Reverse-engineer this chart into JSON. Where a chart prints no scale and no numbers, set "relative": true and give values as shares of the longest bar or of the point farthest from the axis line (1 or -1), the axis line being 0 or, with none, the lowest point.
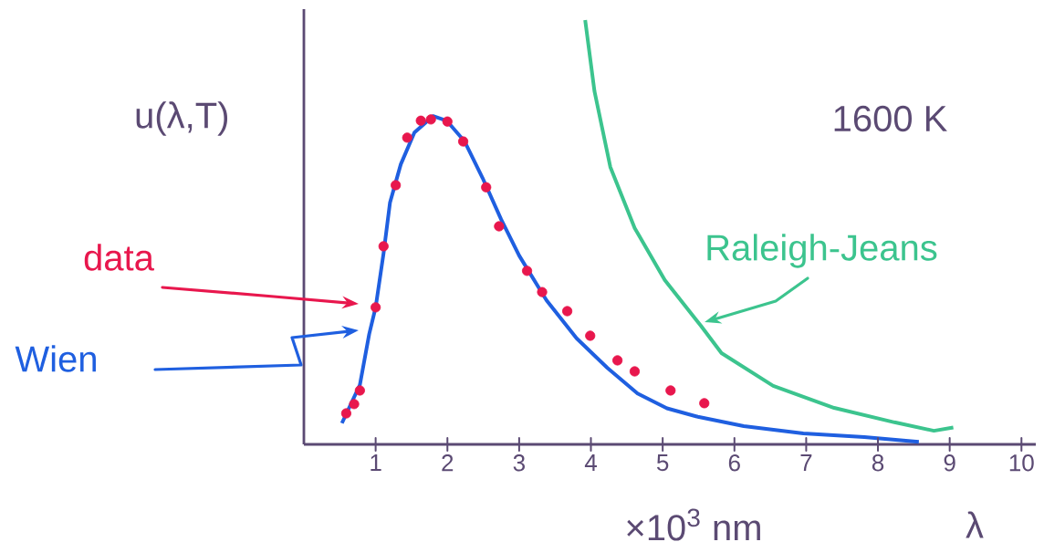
{
  "chart_data": {
    "type": "line",
    "relative": true,
    "ylabel": "u(λ,T)",
    "xlabel": "×10$^{3}$ nm",
    "annotations": [
      "1600 K",
      "λ"
    ],
    "xlim": [
      0,
      10.2
    ],
    "xticks": [
      1,
      2,
      3,
      4,
      5,
      6,
      7,
      8,
      9,
      10
    ],
    "series": [
      {
        "name": "data",
        "type": "scatter",
        "marker": "circle",
        "color": "#e8174d",
        "x": [
          0.59,
          0.7,
          0.78,
          1.0,
          1.11,
          1.28,
          1.44,
          1.63,
          1.77,
          2.0,
          2.22,
          2.54,
          2.72,
          3.11,
          3.32,
          3.67,
          3.99,
          4.37,
          4.61,
          5.11,
          5.58
        ],
        "values": [
          0.073,
          0.095,
          0.127,
          0.323,
          0.467,
          0.611,
          0.723,
          0.763,
          0.766,
          0.761,
          0.714,
          0.606,
          0.514,
          0.409,
          0.359,
          0.314,
          0.256,
          0.198,
          0.172,
          0.127,
          0.097
        ]
      },
      {
        "name": "Wien",
        "marker": "none",
        "color": "#1f5fe0",
        "x": [
          0.53,
          0.78,
          0.91,
          1.0,
          1.11,
          1.2,
          1.35,
          1.54,
          1.8,
          1.99,
          2.24,
          2.49,
          2.75,
          3.0,
          3.38,
          3.8,
          4.23,
          4.65,
          5.06,
          5.49,
          6.13,
          6.96,
          7.81,
          8.57
        ],
        "values": [
          0.05,
          0.14,
          0.26,
          0.323,
          0.45,
          0.57,
          0.66,
          0.735,
          0.774,
          0.763,
          0.714,
          0.628,
          0.53,
          0.445,
          0.34,
          0.25,
          0.18,
          0.12,
          0.085,
          0.065,
          0.043,
          0.026,
          0.017,
          0.006
        ]
      },
      {
        "name": "Raleigh-Jeans",
        "marker": "none",
        "color": "#3cc48e",
        "x": [
          3.92,
          4.05,
          4.27,
          4.61,
          5.03,
          5.53,
          5.82,
          6.54,
          7.39,
          8.23,
          8.78,
          9.05
        ],
        "values": [
          1.0,
          0.832,
          0.654,
          0.51,
          0.387,
          0.28,
          0.215,
          0.138,
          0.086,
          0.052,
          0.032,
          0.04
        ]
      }
    ]
  }
}
